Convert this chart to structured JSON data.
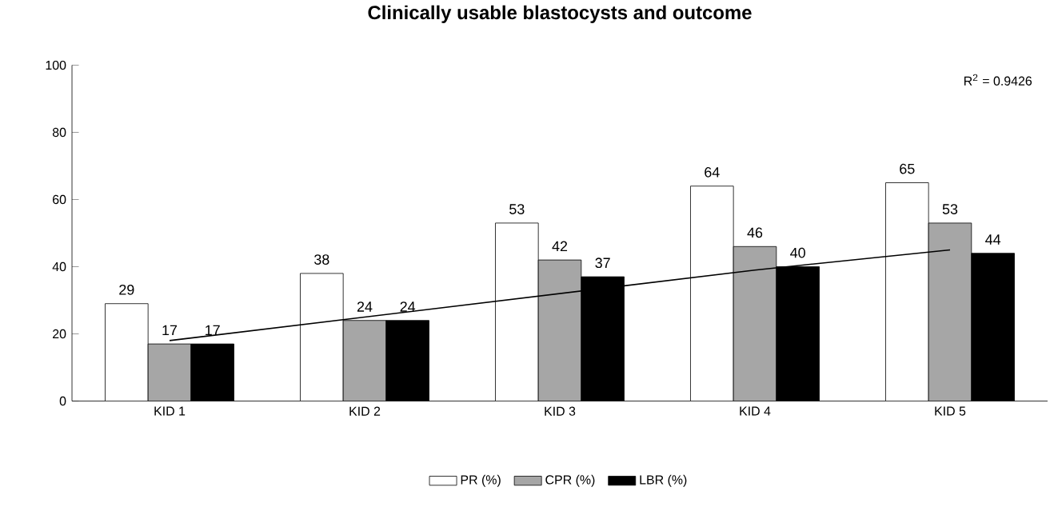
{
  "chart_data": {
    "type": "bar",
    "title": "Clinically usable blastocysts and outcome",
    "categories": [
      "KID 1",
      "KID 2",
      "KID 3",
      "KID 4",
      "KID 5"
    ],
    "series": [
      {
        "name": "PR (%)",
        "color": "#ffffff",
        "values": [
          29,
          38,
          53,
          64,
          65
        ],
        "value_labels": [
          "29",
          "38",
          "53",
          "64",
          "65"
        ]
      },
      {
        "name": "CPR (%)",
        "color": "#a6a6a6",
        "values": [
          17,
          24,
          42,
          46,
          53
        ],
        "value_labels": [
          "17",
          "24",
          "42",
          "46",
          "53"
        ]
      },
      {
        "name": "LBR (%)",
        "color": "#000000",
        "values": [
          17,
          24,
          37,
          40,
          44
        ],
        "value_labels": [
          "17",
          "24",
          "37",
          "40",
          "44"
        ]
      },
      {
        "type": "line",
        "color": "#000000",
        "values": [
          18,
          25,
          32,
          39,
          45
        ]
      }
    ],
    "annotations": [
      "R$^{2}$ = 0.9426"
    ],
    "ylim": [
      0,
      100
    ],
    "yticks": [
      0,
      20,
      40,
      60,
      80,
      100
    ],
    "legend": "bottom",
    "grid": false
  }
}
